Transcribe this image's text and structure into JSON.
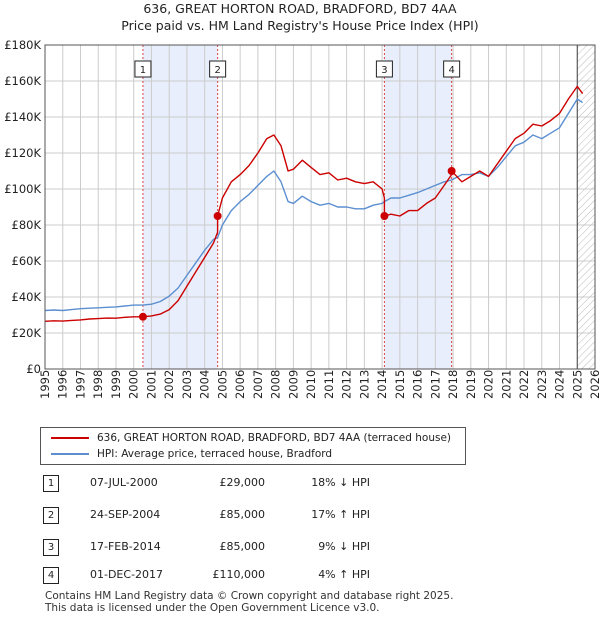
{
  "title": {
    "line1": "636, GREAT HORTON ROAD, BRADFORD, BD7 4AA",
    "line2": "Price paid vs. HM Land Registry's House Price Index (HPI)"
  },
  "colors": {
    "property": "#cc0000",
    "hpi": "#5b8fd0",
    "shade": "#e8eefb",
    "grid": "#cccccc",
    "marker_line": "#dd4444"
  },
  "chart_data": {
    "type": "line",
    "title": "Price paid vs. HM Land Registry's House Price Index (HPI)",
    "xlabel": "",
    "ylabel": "",
    "xlim": [
      1995,
      2026
    ],
    "ylim": [
      0,
      180000
    ],
    "y_ticks": [
      {
        "value": 0,
        "label": "£0"
      },
      {
        "value": 20000,
        "label": "£20K"
      },
      {
        "value": 40000,
        "label": "£40K"
      },
      {
        "value": 60000,
        "label": "£60K"
      },
      {
        "value": 80000,
        "label": "£80K"
      },
      {
        "value": 100000,
        "label": "£100K"
      },
      {
        "value": 120000,
        "label": "£120K"
      },
      {
        "value": 140000,
        "label": "£140K"
      },
      {
        "value": 160000,
        "label": "£160K"
      },
      {
        "value": 180000,
        "label": "£180K"
      }
    ],
    "x_ticks": [
      "1995",
      "1996",
      "1997",
      "1998",
      "1999",
      "2000",
      "2001",
      "2002",
      "2003",
      "2004",
      "2005",
      "2006",
      "2007",
      "2008",
      "2009",
      "2010",
      "2011",
      "2012",
      "2013",
      "2014",
      "2015",
      "2016",
      "2017",
      "2018",
      "2019",
      "2020",
      "2021",
      "2022",
      "2023",
      "2024",
      "2025",
      "2026"
    ],
    "grid": true,
    "shaded_ranges": [
      [
        2000.52,
        2004.73
      ],
      [
        2014.13,
        2017.92
      ]
    ],
    "projection_start": 2025.0,
    "series": [
      {
        "name": "636, GREAT HORTON ROAD, BRADFORD, BD7 4AA (terraced house)",
        "color": "#cc0000",
        "x": [
          1995.0,
          1995.5,
          1996.0,
          1996.5,
          1997.0,
          1997.5,
          1998.0,
          1998.5,
          1999.0,
          1999.5,
          2000.0,
          2000.52,
          2000.52,
          2001.0,
          2001.5,
          2002.0,
          2002.5,
          2003.0,
          2003.5,
          2004.0,
          2004.5,
          2004.73,
          2004.73,
          2005.0,
          2005.5,
          2006.0,
          2006.5,
          2007.0,
          2007.5,
          2007.9,
          2008.3,
          2008.7,
          2009.0,
          2009.5,
          2010.0,
          2010.5,
          2011.0,
          2011.5,
          2012.0,
          2012.5,
          2013.0,
          2013.5,
          2014.0,
          2014.13,
          2014.13,
          2014.5,
          2015.0,
          2015.5,
          2016.0,
          2016.5,
          2017.0,
          2017.5,
          2017.92,
          2017.92,
          2018.5,
          2019.0,
          2019.5,
          2020.0,
          2020.5,
          2021.0,
          2021.5,
          2022.0,
          2022.5,
          2023.0,
          2023.5,
          2024.0,
          2024.5,
          2025.0,
          2025.3
        ],
        "y": [
          26500,
          26800,
          26600,
          27000,
          27300,
          27800,
          28000,
          28300,
          28200,
          28700,
          29000,
          29000,
          29000,
          29500,
          30500,
          33000,
          38000,
          46000,
          54000,
          62000,
          70000,
          76000,
          85000,
          95000,
          104000,
          108000,
          113000,
          120000,
          128000,
          130000,
          124000,
          110000,
          111000,
          116000,
          112000,
          108000,
          109000,
          105000,
          106000,
          104000,
          103000,
          104000,
          100000,
          95000,
          85000,
          86000,
          85000,
          88000,
          88000,
          92000,
          95000,
          102000,
          108000,
          110000,
          104000,
          107000,
          110000,
          107000,
          114000,
          121000,
          128000,
          131000,
          136000,
          135000,
          138000,
          142000,
          150000,
          157000,
          153000
        ]
      },
      {
        "name": "HPI: Average price, terraced house, Bradford",
        "color": "#5b8fd0",
        "x": [
          1995.0,
          1995.5,
          1996.0,
          1996.5,
          1997.0,
          1997.5,
          1998.0,
          1998.5,
          1999.0,
          1999.5,
          2000.0,
          2000.52,
          2001.0,
          2001.5,
          2002.0,
          2002.5,
          2003.0,
          2003.5,
          2004.0,
          2004.5,
          2004.73,
          2005.0,
          2005.5,
          2006.0,
          2006.5,
          2007.0,
          2007.5,
          2007.9,
          2008.3,
          2008.7,
          2009.0,
          2009.5,
          2010.0,
          2010.5,
          2011.0,
          2011.5,
          2012.0,
          2012.5,
          2013.0,
          2013.5,
          2014.0,
          2014.13,
          2014.5,
          2015.0,
          2015.5,
          2016.0,
          2016.5,
          2017.0,
          2017.5,
          2017.92,
          2018.5,
          2019.0,
          2019.5,
          2020.0,
          2020.5,
          2021.0,
          2021.5,
          2022.0,
          2022.5,
          2023.0,
          2023.5,
          2024.0,
          2024.5,
          2025.0,
          2025.3
        ],
        "y": [
          32500,
          32800,
          32500,
          33000,
          33500,
          33800,
          34000,
          34300,
          34500,
          35000,
          35500,
          35500,
          36000,
          37500,
          40500,
          45000,
          52000,
          59000,
          66000,
          72000,
          73000,
          80000,
          88000,
          93000,
          97000,
          102000,
          107000,
          110000,
          104000,
          93000,
          92000,
          96000,
          93000,
          91000,
          92000,
          90000,
          90000,
          89000,
          89000,
          91000,
          92000,
          93000,
          95000,
          95000,
          96500,
          98000,
          100000,
          102000,
          104000,
          105000,
          108000,
          108000,
          109000,
          107000,
          112000,
          118000,
          124000,
          126000,
          130000,
          128000,
          131000,
          134000,
          142000,
          150000,
          148000
        ]
      }
    ],
    "sales": [
      {
        "label": "1",
        "x": 2000.52,
        "y": 29000
      },
      {
        "label": "2",
        "x": 2004.73,
        "y": 85000
      },
      {
        "label": "3",
        "x": 2014.13,
        "y": 85000
      },
      {
        "label": "4",
        "x": 2017.92,
        "y": 110000
      }
    ]
  },
  "legend": {
    "property_label": "636, GREAT HORTON ROAD, BRADFORD, BD7 4AA (terraced house)",
    "hpi_label": "HPI: Average price, terraced house, Bradford"
  },
  "transactions": [
    {
      "num": "1",
      "date": "07-JUL-2000",
      "price": "£29,000",
      "hpi": "18% ↓ HPI"
    },
    {
      "num": "2",
      "date": "24-SEP-2004",
      "price": "£85,000",
      "hpi": "17% ↑ HPI"
    },
    {
      "num": "3",
      "date": "17-FEB-2014",
      "price": "£85,000",
      "hpi": "9% ↓ HPI"
    },
    {
      "num": "4",
      "date": "01-DEC-2017",
      "price": "£110,000",
      "hpi": "4% ↑ HPI"
    }
  ],
  "footer": {
    "line1": "Contains HM Land Registry data © Crown copyright and database right 2025.",
    "line2": "This data is licensed under the Open Government Licence v3.0."
  }
}
